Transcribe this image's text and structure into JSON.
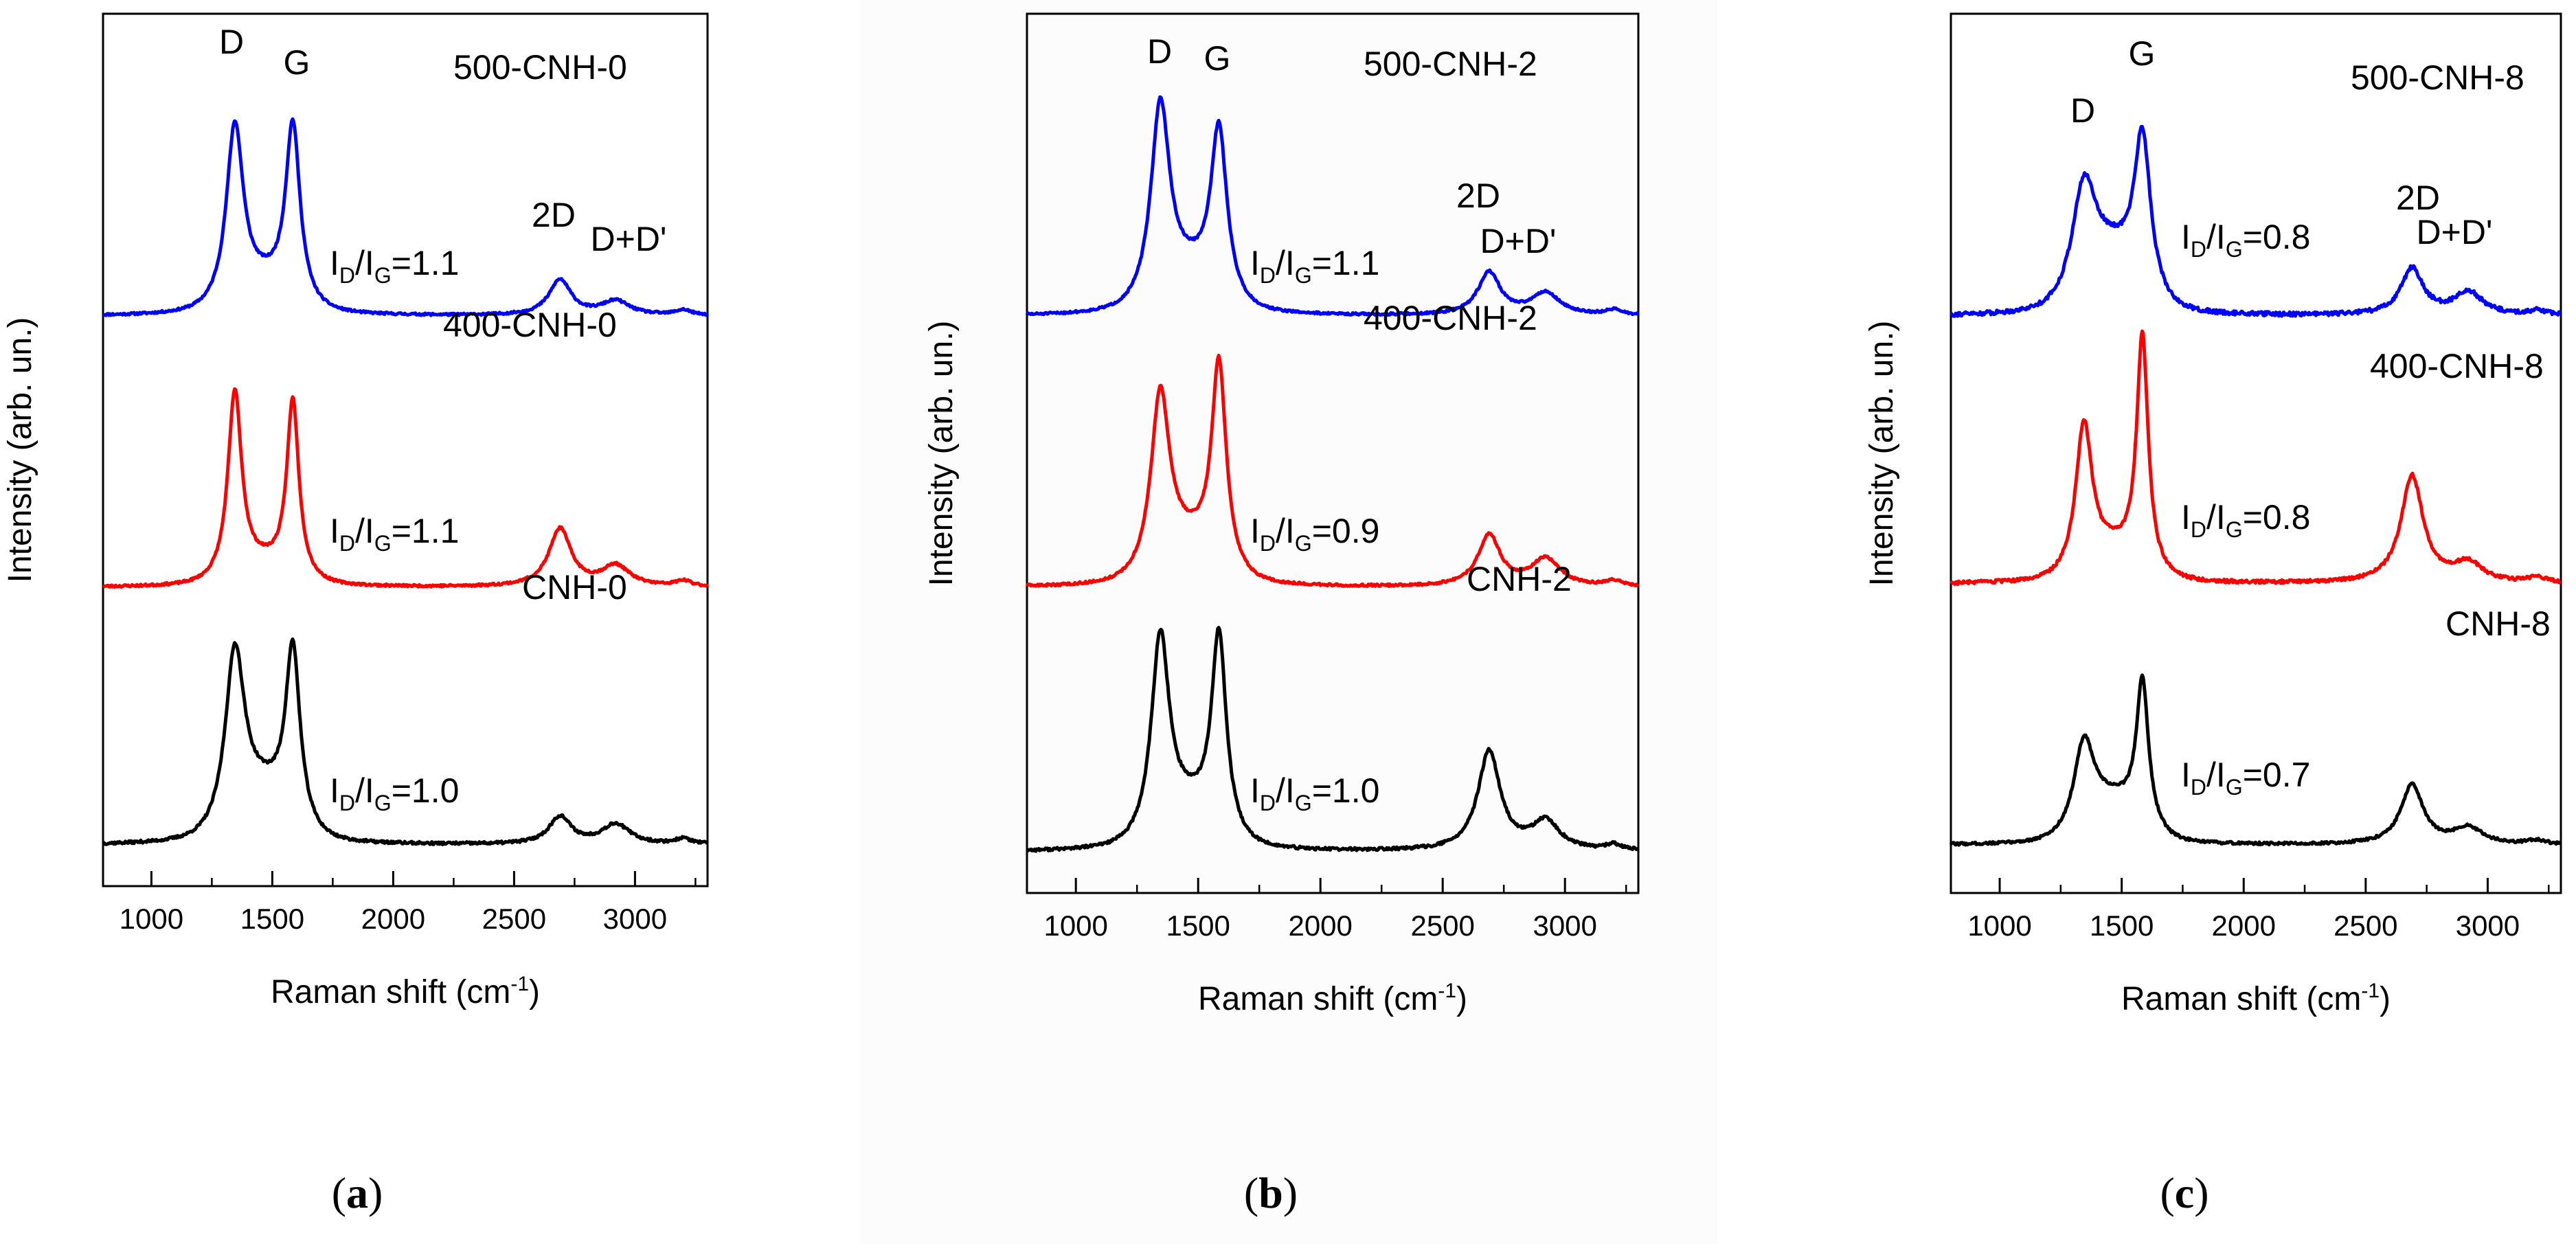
{
  "chart_data": [
    {
      "type": "line",
      "panel_caption": "a",
      "xlabel": "Raman shift (cm",
      "xlabel_sup": "-1",
      "xlabel_suffix": ")",
      "ylabel": "Intensity (arb. un.)",
      "xlim": [
        800,
        3300
      ],
      "xticks": [
        1000,
        1500,
        2000,
        2500,
        3000
      ],
      "peak_labels": [
        "D",
        "G",
        "2D",
        "D+D'"
      ],
      "series": [
        {
          "name": "500-CNH-0",
          "color": "#0000ff",
          "ratio_text": "=1.1",
          "ratio": 1.1,
          "params": {
            "base": 2,
            "dA": 20,
            "gA": 20,
            "dW": 42,
            "gW": 36,
            "valley": 3,
            "s2dA": 4.0,
            "ddA": 1.6,
            "seed": 11,
            "noise": 0.25
          }
        },
        {
          "name": "400-CNH-0",
          "color": "#ff0000",
          "ratio_text": "=1.1",
          "ratio": 1.1,
          "params": {
            "base": 2,
            "dA": 20,
            "gA": 19,
            "dW": 34,
            "gW": 30,
            "valley": 2,
            "s2dA": 6.2,
            "ddA": 2.2,
            "seed": 23,
            "noise": 0.25
          }
        },
        {
          "name": "CNH-0",
          "color": "#000000",
          "ratio_text": "=1.0",
          "ratio": 1.0,
          "params": {
            "base": 1,
            "dA": 19,
            "gA": 19,
            "dW": 48,
            "gW": 36,
            "valley": 5,
            "s2dA": 3.0,
            "ddA": 2.2,
            "seed": 37,
            "noise": 0.3
          }
        }
      ]
    },
    {
      "type": "line",
      "panel_caption": "b",
      "xlabel": "Raman shift (cm",
      "xlabel_sup": "-1",
      "xlabel_suffix": ")",
      "ylabel": "Intensity (arb. un.)",
      "xlim": [
        800,
        3300
      ],
      "xticks": [
        1000,
        1500,
        2000,
        2500,
        3000
      ],
      "peak_labels": [
        "D",
        "G",
        "2D",
        "D+D'"
      ],
      "series": [
        {
          "name": "500-CNH-2",
          "color": "#0000ff",
          "ratio_text": "=1.1",
          "ratio": 1.1,
          "params": {
            "base": 3,
            "dA": 22,
            "gA": 19,
            "dW": 46,
            "gW": 40,
            "valley": 4,
            "s2dA": 4.8,
            "ddA": 2.5,
            "seed": 51,
            "noise": 0.25
          }
        },
        {
          "name": "400-CNH-2",
          "color": "#ff0000",
          "ratio_text": "=0.9",
          "ratio": 0.9,
          "params": {
            "base": 2,
            "dA": 19,
            "gA": 22,
            "dW": 46,
            "gW": 36,
            "valley": 4,
            "s2dA": 5.5,
            "ddA": 3.0,
            "seed": 63,
            "noise": 0.25
          }
        },
        {
          "name": "CNH-2",
          "color": "#000000",
          "ratio_text": "=1.0",
          "ratio": 1.0,
          "params": {
            "base": 1,
            "dA": 21,
            "gA": 21,
            "dW": 44,
            "gW": 36,
            "valley": 4,
            "s2dA": 10.5,
            "ddA": 3.0,
            "seed": 77,
            "noise": 0.3
          }
        }
      ]
    },
    {
      "type": "line",
      "panel_caption": "c",
      "xlabel": "Raman shift (cm",
      "xlabel_sup": "-1",
      "xlabel_suffix": ")",
      "ylabel": "Intensity (arb. un.)",
      "xlim": [
        800,
        3300
      ],
      "xticks": [
        1000,
        1500,
        2000,
        2500,
        3000
      ],
      "peak_labels": [
        "D",
        "G",
        "2D",
        "D+D'"
      ],
      "series": [
        {
          "name": "500-CNH-8",
          "color": "#0000ff",
          "ratio_text": "=0.8",
          "ratio": 0.8,
          "params": {
            "base": 3,
            "dA": 14,
            "gA": 20,
            "dW": 60,
            "gW": 40,
            "valley": 7,
            "s2dA": 6.0,
            "ddA": 3.0,
            "seed": 91,
            "noise": 0.55
          }
        },
        {
          "name": "400-CNH-8",
          "color": "#ff0000",
          "ratio_text": "=0.8",
          "ratio": 0.8,
          "params": {
            "base": 2,
            "dA": 15,
            "gA": 24,
            "dW": 40,
            "gW": 28,
            "valley": 3,
            "s2dA": 11.0,
            "ddA": 2.0,
            "seed": 103,
            "noise": 0.35
          }
        },
        {
          "name": "CNH-8",
          "color": "#000000",
          "ratio_text": "=0.7",
          "ratio": 0.7,
          "params": {
            "base": 2,
            "dA": 13,
            "gA": 22,
            "dW": 50,
            "gW": 30,
            "valley": 6,
            "s2dA": 9.0,
            "ddA": 2.5,
            "seed": 117,
            "noise": 0.4
          }
        }
      ]
    }
  ]
}
